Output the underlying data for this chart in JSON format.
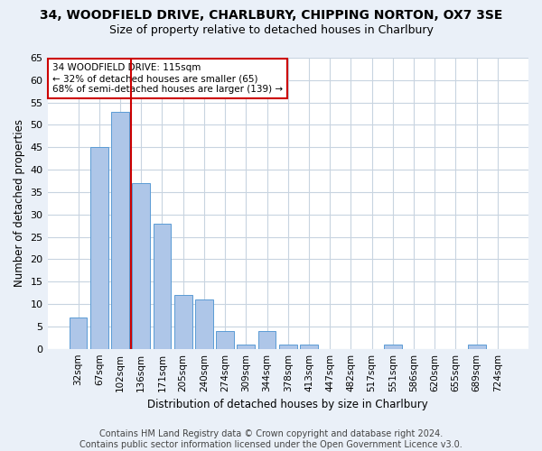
{
  "title1": "34, WOODFIELD DRIVE, CHARLBURY, CHIPPING NORTON, OX7 3SE",
  "title2": "Size of property relative to detached houses in Charlbury",
  "xlabel": "Distribution of detached houses by size in Charlbury",
  "ylabel": "Number of detached properties",
  "categories": [
    "32sqm",
    "67sqm",
    "102sqm",
    "136sqm",
    "171sqm",
    "205sqm",
    "240sqm",
    "274sqm",
    "309sqm",
    "344sqm",
    "378sqm",
    "413sqm",
    "447sqm",
    "482sqm",
    "517sqm",
    "551sqm",
    "586sqm",
    "620sqm",
    "655sqm",
    "689sqm",
    "724sqm"
  ],
  "values": [
    7,
    45,
    53,
    37,
    28,
    12,
    11,
    4,
    1,
    4,
    1,
    1,
    0,
    0,
    0,
    1,
    0,
    0,
    0,
    1,
    0
  ],
  "bar_color": "#aec6e8",
  "bar_edge_color": "#5b9bd5",
  "vline_color": "#cc0000",
  "annotation_line1": "34 WOODFIELD DRIVE: 115sqm",
  "annotation_line2": "← 32% of detached houses are smaller (65)",
  "annotation_line3": "68% of semi-detached houses are larger (139) →",
  "annotation_box_color": "#ffffff",
  "annotation_box_edge_color": "#cc0000",
  "ylim": [
    0,
    65
  ],
  "yticks": [
    0,
    5,
    10,
    15,
    20,
    25,
    30,
    35,
    40,
    45,
    50,
    55,
    60,
    65
  ],
  "footer_text": "Contains HM Land Registry data © Crown copyright and database right 2024.\nContains public sector information licensed under the Open Government Licence v3.0.",
  "bg_color": "#eaf0f8",
  "plot_bg_color": "#ffffff",
  "grid_color": "#c8d4e0",
  "title1_fontsize": 10,
  "title2_fontsize": 9,
  "xlabel_fontsize": 8.5,
  "ylabel_fontsize": 8.5,
  "footer_fontsize": 7,
  "tick_fontsize": 7.5,
  "ytick_fontsize": 8
}
